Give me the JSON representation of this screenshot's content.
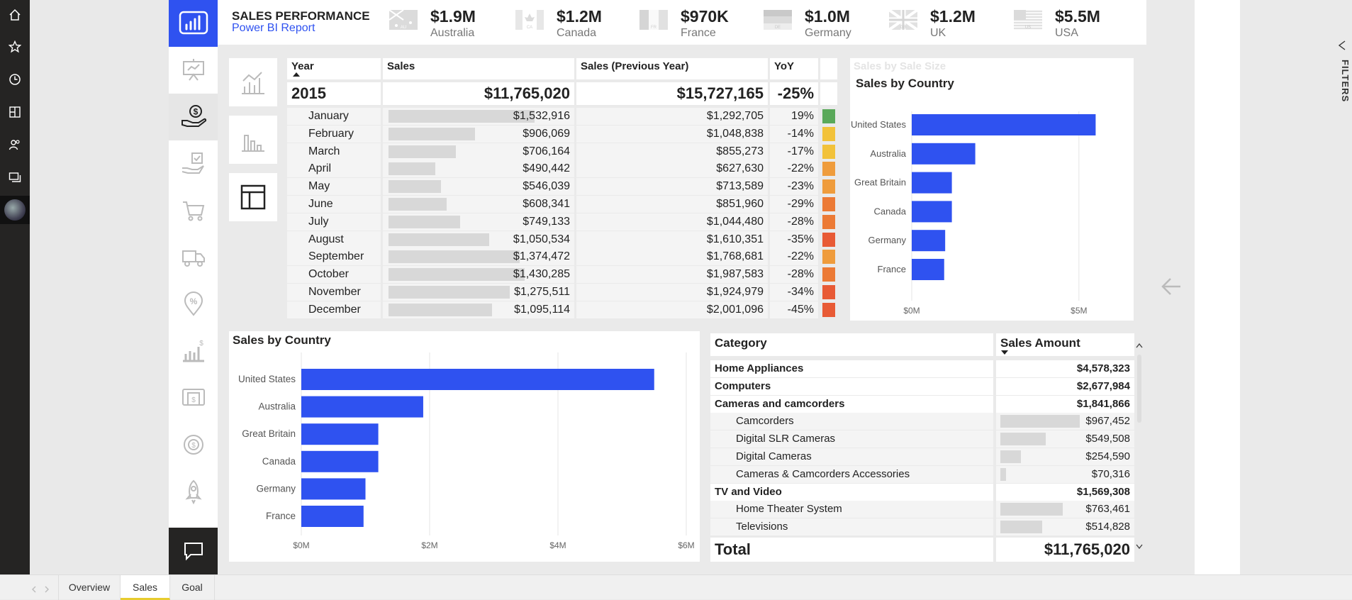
{
  "header": {
    "title": "SALES PERFORMANCE",
    "subtitle": "Power BI Report",
    "kpis": [
      {
        "value": "$1.9M",
        "label": "Australia",
        "flag_code": "AU"
      },
      {
        "value": "$1.2M",
        "label": "Canada",
        "flag_code": "CA"
      },
      {
        "value": "$970K",
        "label": "France",
        "flag_code": "FR"
      },
      {
        "value": "$1.0M",
        "label": "Germany",
        "flag_code": "DE"
      },
      {
        "value": "$1.2M",
        "label": "UK",
        "flag_code": "GB"
      },
      {
        "value": "$5.5M",
        "label": "USA",
        "flag_code": "US"
      }
    ]
  },
  "left_nav_icons": [
    "home-icon",
    "star-icon",
    "clock-icon",
    "apps-icon",
    "people-icon",
    "workspaces-icon",
    "avatar"
  ],
  "page_nav_icons": [
    "presentation-icon",
    "money-hand-icon",
    "hand-check-icon",
    "cart-icon",
    "truck-icon",
    "percent-pin-icon",
    "growth-chart-icon",
    "atm-icon",
    "target-money-icon",
    "rocket-icon",
    "chat-icon"
  ],
  "visual_toggles": [
    "line-chart-icon",
    "bar-chart-icon",
    "table-icon"
  ],
  "monthly_table": {
    "headers": {
      "year": "Year",
      "sales": "Sales",
      "prev": "Sales (Previous Year)",
      "yoy": "YoY"
    },
    "total": {
      "year": "2015",
      "sales": "$11,765,020",
      "prev": "$15,727,165",
      "yoy": "-25%"
    },
    "rows": [
      {
        "month": "January",
        "sales": "$1,532,916",
        "prev": "$1,292,705",
        "yoy": "19%",
        "fill": 1.0,
        "color": "#5aa95a"
      },
      {
        "month": "February",
        "sales": "$906,069",
        "prev": "$1,048,838",
        "yoy": "-14%",
        "fill": 0.59,
        "color": "#f2c23a"
      },
      {
        "month": "March",
        "sales": "$706,164",
        "prev": "$855,273",
        "yoy": "-17%",
        "fill": 0.46,
        "color": "#f2c23a"
      },
      {
        "month": "April",
        "sales": "$490,442",
        "prev": "$627,630",
        "yoy": "-22%",
        "fill": 0.32,
        "color": "#ef9c3c"
      },
      {
        "month": "May",
        "sales": "$546,039",
        "prev": "$713,589",
        "yoy": "-23%",
        "fill": 0.36,
        "color": "#ef9c3c"
      },
      {
        "month": "June",
        "sales": "$608,341",
        "prev": "$851,960",
        "yoy": "-29%",
        "fill": 0.4,
        "color": "#ec7a35"
      },
      {
        "month": "July",
        "sales": "$749,133",
        "prev": "$1,044,480",
        "yoy": "-28%",
        "fill": 0.49,
        "color": "#ec7a35"
      },
      {
        "month": "August",
        "sales": "$1,050,534",
        "prev": "$1,610,351",
        "yoy": "-35%",
        "fill": 0.69,
        "color": "#e85a35"
      },
      {
        "month": "September",
        "sales": "$1,374,472",
        "prev": "$1,768,681",
        "yoy": "-22%",
        "fill": 0.9,
        "color": "#ef9c3c"
      },
      {
        "month": "October",
        "sales": "$1,430,285",
        "prev": "$1,987,583",
        "yoy": "-28%",
        "fill": 0.93,
        "color": "#ec7a35"
      },
      {
        "month": "November",
        "sales": "$1,275,511",
        "prev": "$1,924,979",
        "yoy": "-34%",
        "fill": 0.83,
        "color": "#e85a35"
      },
      {
        "month": "December",
        "sales": "$1,095,114",
        "prev": "$2,001,096",
        "yoy": "-45%",
        "fill": 0.71,
        "color": "#e85a35"
      }
    ]
  },
  "small_chart": {
    "faded_title": "Sales by Sale Size",
    "title": "Sales by Country"
  },
  "big_chart": {
    "title": "Sales by Country"
  },
  "chart_data": [
    {
      "type": "bar",
      "orientation": "horizontal",
      "title": "Sales by Country",
      "categories": [
        "United States",
        "Australia",
        "Great Britain",
        "Canada",
        "Germany",
        "France"
      ],
      "values": [
        5.5,
        1.9,
        1.2,
        1.2,
        1.0,
        0.97
      ],
      "xlim": [
        0,
        6
      ],
      "ticks": [
        {
          "v": 0,
          "label": "$0M"
        },
        {
          "v": 5,
          "label": "$5M"
        }
      ],
      "color": "#2f52f0",
      "grid": true
    },
    {
      "type": "bar",
      "orientation": "horizontal",
      "title": "Sales by Country",
      "categories": [
        "United States",
        "Australia",
        "Great Britain",
        "Canada",
        "Germany",
        "France"
      ],
      "values": [
        5.5,
        1.9,
        1.2,
        1.2,
        1.0,
        0.97
      ],
      "xlim": [
        0,
        6
      ],
      "ticks": [
        {
          "v": 0,
          "label": "$0M"
        },
        {
          "v": 2,
          "label": "$2M"
        },
        {
          "v": 4,
          "label": "$4M"
        },
        {
          "v": 6,
          "label": "$6M"
        }
      ],
      "color": "#2f52f0",
      "grid": true
    }
  ],
  "category_table": {
    "headers": {
      "category": "Category",
      "amount": "Sales Amount"
    },
    "rows": [
      {
        "label": "Home Appliances",
        "value": "$4,578,323",
        "level": 0,
        "fill": 0
      },
      {
        "label": "Computers",
        "value": "$2,677,984",
        "level": 0,
        "fill": 0
      },
      {
        "label": "Cameras and camcorders",
        "value": "$1,841,866",
        "level": 0,
        "fill": 0
      },
      {
        "label": "Camcorders",
        "value": "$967,452",
        "level": 1,
        "fill": 1.0
      },
      {
        "label": "Digital SLR Cameras",
        "value": "$549,508",
        "level": 1,
        "fill": 0.57
      },
      {
        "label": "Digital Cameras",
        "value": "$254,590",
        "level": 1,
        "fill": 0.26
      },
      {
        "label": "Cameras & Camcorders Accessories",
        "value": "$70,316",
        "level": 1,
        "fill": 0.07
      },
      {
        "label": "TV and Video",
        "value": "$1,569,308",
        "level": 0,
        "fill": 0
      },
      {
        "label": "Home Theater System",
        "value": "$763,461",
        "level": 1,
        "fill": 0.79
      },
      {
        "label": "Televisions",
        "value": "$514,828",
        "level": 1,
        "fill": 0.53
      }
    ],
    "total_label": "Total",
    "total_value": "$11,765,020"
  },
  "filters_label": "FILTERS",
  "tabs": [
    "Overview",
    "Sales",
    "Goal"
  ]
}
